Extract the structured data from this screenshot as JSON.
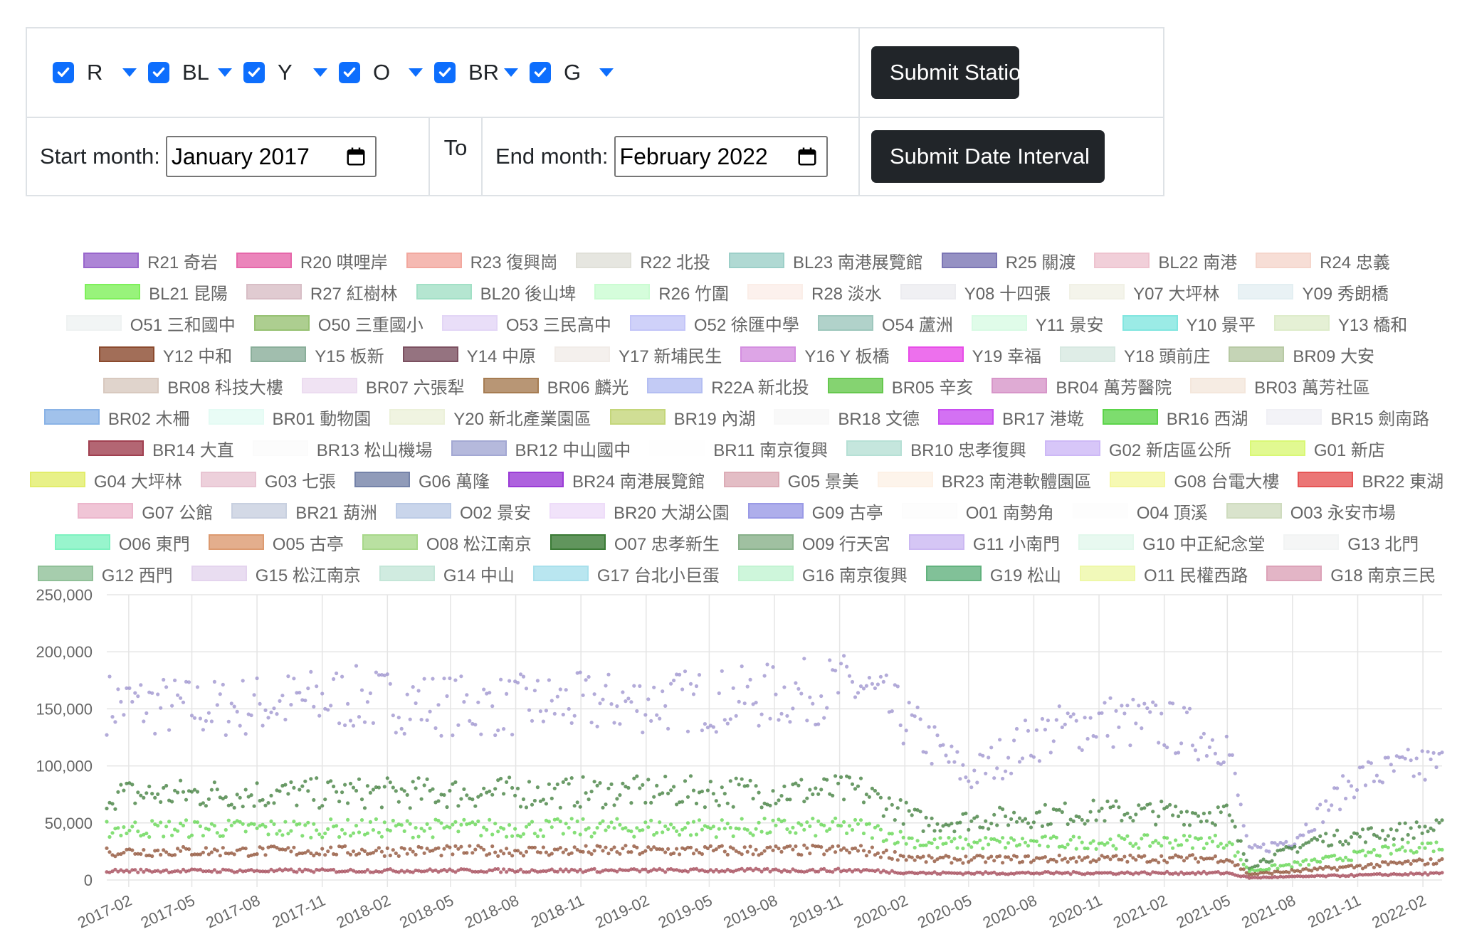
{
  "controls": {
    "lines": [
      {
        "label": "R"
      },
      {
        "label": "BL"
      },
      {
        "label": "Y"
      },
      {
        "label": "O"
      },
      {
        "label": "BR"
      },
      {
        "label": "G"
      }
    ],
    "submit_stations": "Submit Stations",
    "start_month_label": "Start month:",
    "start_month_value": "January 2017",
    "to_label": "To",
    "end_month_label": "End month:",
    "end_month_value": "February 2022",
    "submit_dates": "Submit Date Interval",
    "checkbox_color": "#0d6efd",
    "button_color": "#212529"
  },
  "legend_rows": [
    [
      {
        "name": "R21 奇岩",
        "color": "#9966cc"
      },
      {
        "name": "R20 唭哩岸",
        "color": "#e667aa"
      },
      {
        "name": "R23 復興崗",
        "color": "#f2a89f"
      },
      {
        "name": "R22 北投",
        "color": "#e0e0d8"
      },
      {
        "name": "BL23 南港展覽館",
        "color": "#9ccfc8"
      },
      {
        "name": "R25 關渡",
        "color": "#7b75b4"
      },
      {
        "name": "BL22 南港",
        "color": "#eec3cf"
      },
      {
        "name": "R24 忠義",
        "color": "#f5d6cc"
      }
    ],
    [
      {
        "name": "BL21 昆陽",
        "color": "#7ef05a"
      },
      {
        "name": "R27 紅樹林",
        "color": "#d8bec6"
      },
      {
        "name": "BL20 後山埤",
        "color": "#a2e0c6"
      },
      {
        "name": "R26 竹圍",
        "color": "#cbfcd2"
      },
      {
        "name": "R28 淡水",
        "color": "#fbeee8"
      },
      {
        "name": "Y08 十四張",
        "color": "#ececf0"
      },
      {
        "name": "Y07 大坪林",
        "color": "#f1f1e6"
      },
      {
        "name": "Y09 秀朗橋",
        "color": "#e3eff2"
      }
    ],
    [
      {
        "name": "O51 三和國中",
        "color": "#eff2f2"
      },
      {
        "name": "O50 三重國小",
        "color": "#98c274"
      },
      {
        "name": "O53 三民高中",
        "color": "#e3d6f6"
      },
      {
        "name": "O52 徐匯中學",
        "color": "#c3c5f8"
      },
      {
        "name": "O54 蘆洲",
        "color": "#9ec7bd"
      },
      {
        "name": "Y11 景安",
        "color": "#d8fbe4"
      },
      {
        "name": "Y10 景平",
        "color": "#82e6e0"
      },
      {
        "name": "Y13 橋和",
        "color": "#deeccb"
      }
    ],
    [
      {
        "name": "Y12 中和",
        "color": "#8b4a2e"
      },
      {
        "name": "Y15 板新",
        "color": "#8aae9a"
      },
      {
        "name": "Y14 中原",
        "color": "#7b5060"
      },
      {
        "name": "Y17 新埔民生",
        "color": "#f1ece8"
      },
      {
        "name": "Y16 Y 板橋",
        "color": "#d48ee0"
      },
      {
        "name": "Y19 幸福",
        "color": "#e84ce8"
      },
      {
        "name": "Y18 頭前庄",
        "color": "#d7e8e1"
      },
      {
        "name": "BR09 大安",
        "color": "#b7c9a4"
      }
    ],
    [
      {
        "name": "BR08 科技大樓",
        "color": "#d8c9bf"
      },
      {
        "name": "BR07 六張犁",
        "color": "#ecdcf0"
      },
      {
        "name": "BR06 麟光",
        "color": "#a67c52"
      },
      {
        "name": "R22A 新北投",
        "color": "#b4bef2"
      },
      {
        "name": "BR05 辛亥",
        "color": "#66c84e"
      },
      {
        "name": "BR04 萬芳醫院",
        "color": "#d796c9"
      },
      {
        "name": "BR03 萬芳社區",
        "color": "#f4e7dc"
      }
    ],
    [
      {
        "name": "BR02 木柵",
        "color": "#8ab3e6"
      },
      {
        "name": "BR01 動物園",
        "color": "#e4fbf4"
      },
      {
        "name": "Y20 新北產業園區",
        "color": "#ecf1da"
      },
      {
        "name": "BR19 內湖",
        "color": "#c4d67a"
      },
      {
        "name": "BR18 文德",
        "color": "#f8f8f8"
      },
      {
        "name": "BR17 港墘",
        "color": "#c84ef0"
      },
      {
        "name": "BR16 西湖",
        "color": "#5cd44a"
      },
      {
        "name": "BR15 劍南路",
        "color": "#f0f0f5"
      }
    ],
    [
      {
        "name": "BR14 大直",
        "color": "#a04050"
      },
      {
        "name": "BR13 松山機場",
        "color": "#fbfbfb"
      },
      {
        "name": "BR12 中山國中",
        "color": "#a3a8d3"
      },
      {
        "name": "BR11 南京復興",
        "color": "#fefefe"
      },
      {
        "name": "BR10 忠孝復興",
        "color": "#b6e0d5"
      },
      {
        "name": "G02 新店區公所",
        "color": "#cdb8f6"
      },
      {
        "name": "G01 新店",
        "color": "#d9f875"
      }
    ],
    [
      {
        "name": "G04 大坪林",
        "color": "#e2ed6a"
      },
      {
        "name": "G03 七張",
        "color": "#e8c4d2"
      },
      {
        "name": "G06 萬隆",
        "color": "#7482a8"
      },
      {
        "name": "BR24 南港展覽館",
        "color": "#9a3bd6"
      },
      {
        "name": "G05 景美",
        "color": "#dcacb6"
      },
      {
        "name": "BR23 南港軟體園區",
        "color": "#fdf1e6"
      },
      {
        "name": "G08 台電大樓",
        "color": "#f4f7a0"
      },
      {
        "name": "BR22 東湖",
        "color": "#e65454"
      }
    ],
    [
      {
        "name": "G07 公館",
        "color": "#ecb6cc"
      },
      {
        "name": "BR21 葫洲",
        "color": "#c8d0e0"
      },
      {
        "name": "O02 景安",
        "color": "#bccbe6"
      },
      {
        "name": "BR20 大湖公園",
        "color": "#eedcf9"
      },
      {
        "name": "G09 古亭",
        "color": "#9a9ae6"
      },
      {
        "name": "O01 南勢角",
        "color": "#fcfcfc"
      },
      {
        "name": "O04 頂溪",
        "color": "#fdfdfd"
      },
      {
        "name": "O03 永安市場",
        "color": "#cfdcbf"
      }
    ],
    [
      {
        "name": "O06 東門",
        "color": "#7ef2c0"
      },
      {
        "name": "O05 古亭",
        "color": "#dc9a70"
      },
      {
        "name": "O08 松江南京",
        "color": "#a8d88a"
      },
      {
        "name": "O07 忠孝新生",
        "color": "#3a7a35"
      },
      {
        "name": "O09 行天宮",
        "color": "#88b08a"
      },
      {
        "name": "G11 小南門",
        "color": "#cbb8f2"
      },
      {
        "name": "G10 中正紀念堂",
        "color": "#e2f8ec"
      },
      {
        "name": "G13 北門",
        "color": "#f2f4f4"
      }
    ],
    [
      {
        "name": "G12 西門",
        "color": "#90c098"
      },
      {
        "name": "G15 松江南京",
        "color": "#e4d4ee"
      },
      {
        "name": "G14 中山",
        "color": "#c4e6d8"
      },
      {
        "name": "G17 台北小巨蛋",
        "color": "#a8e0ec"
      },
      {
        "name": "G16 南京復興",
        "color": "#c2f4d2"
      },
      {
        "name": "G19 松山",
        "color": "#62b27e"
      },
      {
        "name": "O11 民權西路",
        "color": "#eef8a8"
      },
      {
        "name": "G18 南京三民",
        "color": "#dca2b8"
      }
    ]
  ],
  "chart_data": {
    "type": "scatter",
    "title": "",
    "xlabel": "",
    "ylabel": "",
    "ylim": [
      0,
      250000
    ],
    "xlim": [
      "2017-01-01",
      "2022-02-28"
    ],
    "grid": true,
    "legend_position": "top",
    "x_ticks": [
      "2017-02",
      "2017-05",
      "2017-08",
      "2017-11",
      "2018-02",
      "2018-05",
      "2018-08",
      "2018-11",
      "2019-02",
      "2019-05",
      "2019-08",
      "2019-11",
      "2020-02",
      "2020-05",
      "2020-08",
      "2020-11",
      "2021-02",
      "2021-05",
      "2021-08",
      "2021-11",
      "2022-02"
    ],
    "y_ticks": [
      "0",
      "50,000",
      "100,000",
      "150,000",
      "200,000",
      "250,000"
    ],
    "y_tick_values": [
      0,
      50000,
      100000,
      150000,
      200000,
      250000
    ],
    "series_trends": [
      {
        "name": "R25 關渡",
        "color": "#9a8fcc",
        "values": [
          {
            "x": "2017-01",
            "y": 155000
          },
          {
            "x": "2017-06",
            "y": 150000
          },
          {
            "x": "2017-12",
            "y": 160000
          },
          {
            "x": "2018-06",
            "y": 152000
          },
          {
            "x": "2018-12",
            "y": 155000
          },
          {
            "x": "2019-06",
            "y": 158000
          },
          {
            "x": "2019-12",
            "y": 170000
          },
          {
            "x": "2020-02",
            "y": 140000
          },
          {
            "x": "2020-05",
            "y": 90000
          },
          {
            "x": "2020-08",
            "y": 125000
          },
          {
            "x": "2020-11",
            "y": 140000
          },
          {
            "x": "2021-02",
            "y": 135000
          },
          {
            "x": "2021-05",
            "y": 120000
          },
          {
            "x": "2021-06",
            "y": 25000
          },
          {
            "x": "2021-08",
            "y": 35000
          },
          {
            "x": "2021-11",
            "y": 90000
          },
          {
            "x": "2022-02",
            "y": 100000
          }
        ]
      },
      {
        "name": "O07 忠孝新生",
        "color": "#3a7a35",
        "values": [
          {
            "x": "2017-01",
            "y": 75000
          },
          {
            "x": "2019-12",
            "y": 78000
          },
          {
            "x": "2020-03",
            "y": 50000
          },
          {
            "x": "2020-11",
            "y": 60000
          },
          {
            "x": "2021-05",
            "y": 58000
          },
          {
            "x": "2021-06",
            "y": 12000
          },
          {
            "x": "2021-09",
            "y": 35000
          },
          {
            "x": "2022-02",
            "y": 45000
          }
        ]
      },
      {
        "name": "BR16 西湖",
        "color": "#5cd44a",
        "values": [
          {
            "x": "2017-01",
            "y": 45000
          },
          {
            "x": "2019-12",
            "y": 46000
          },
          {
            "x": "2020-03",
            "y": 32000
          },
          {
            "x": "2021-05",
            "y": 34000
          },
          {
            "x": "2021-06",
            "y": 8000
          },
          {
            "x": "2022-02",
            "y": 30000
          }
        ]
      },
      {
        "name": "Y12 中和",
        "color": "#8b4a2e",
        "values": [
          {
            "x": "2017-01",
            "y": 25000
          },
          {
            "x": "2019-12",
            "y": 26000
          },
          {
            "x": "2020-03",
            "y": 18000
          },
          {
            "x": "2021-05",
            "y": 19000
          },
          {
            "x": "2021-06",
            "y": 5000
          },
          {
            "x": "2022-02",
            "y": 16000
          }
        ]
      },
      {
        "name": "BR14 大直",
        "color": "#a04050",
        "values": [
          {
            "x": "2017-01",
            "y": 8000
          },
          {
            "x": "2019-12",
            "y": 8500
          },
          {
            "x": "2020-03",
            "y": 6000
          },
          {
            "x": "2021-05",
            "y": 6200
          },
          {
            "x": "2021-06",
            "y": 2000
          },
          {
            "x": "2022-02",
            "y": 5500
          }
        ]
      }
    ]
  }
}
